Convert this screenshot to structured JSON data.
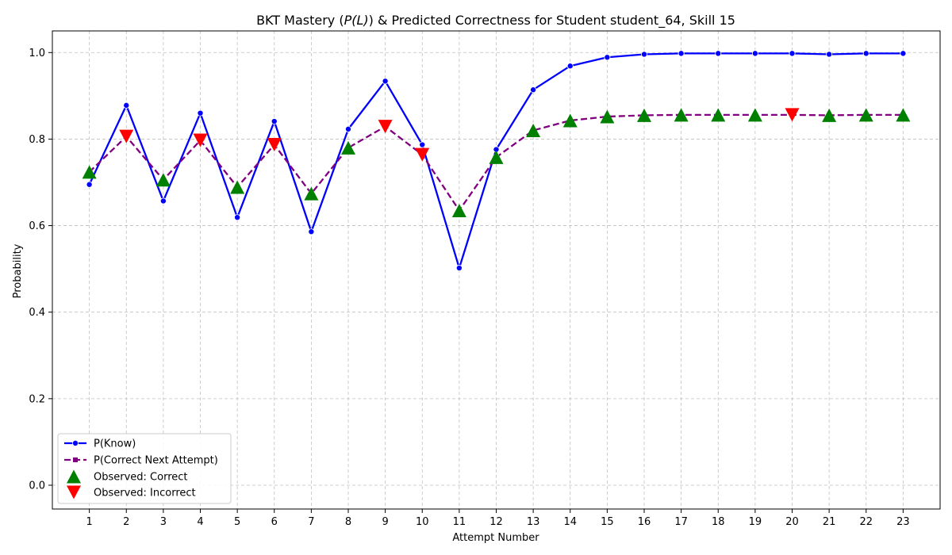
{
  "chart_data": {
    "type": "line",
    "title_prefix": "BKT Mastery (",
    "title_math": "P(L)",
    "title_suffix": ") & Predicted Correctness for Student student_64, Skill 15",
    "xlabel": "Attempt Number",
    "ylabel": "Probability",
    "x": [
      1,
      2,
      3,
      4,
      5,
      6,
      7,
      8,
      9,
      10,
      11,
      12,
      13,
      14,
      15,
      16,
      17,
      18,
      19,
      20,
      21,
      22,
      23
    ],
    "xlim": [
      0,
      24
    ],
    "ylim": [
      -0.055,
      1.05
    ],
    "yticks": [
      0.0,
      0.2,
      0.4,
      0.6,
      0.8,
      1.0
    ],
    "ytick_labels": [
      "0.0",
      "0.2",
      "0.4",
      "0.6",
      "0.8",
      "1.0"
    ],
    "xtick_labels": [
      "1",
      "2",
      "3",
      "4",
      "5",
      "6",
      "7",
      "8",
      "9",
      "10",
      "11",
      "12",
      "13",
      "14",
      "15",
      "16",
      "17",
      "18",
      "19",
      "20",
      "21",
      "22",
      "23"
    ],
    "grid": true,
    "legend_position": "lower-left",
    "series": [
      {
        "name": "P(Know)",
        "color": "#0000ff",
        "style": "solid",
        "marker": "circle",
        "values": [
          0.695,
          0.878,
          0.657,
          0.86,
          0.619,
          0.841,
          0.586,
          0.823,
          0.934,
          0.787,
          0.502,
          0.776,
          0.914,
          0.969,
          0.989,
          0.996,
          0.998,
          0.998,
          0.998,
          0.998,
          0.996,
          0.998,
          0.998
        ]
      },
      {
        "name": "P(Correct Next Attempt)",
        "color": "#800080",
        "style": "dashed",
        "marker": "square",
        "values": [
          0.724,
          0.806,
          0.706,
          0.797,
          0.689,
          0.787,
          0.674,
          0.78,
          0.829,
          0.764,
          0.635,
          0.758,
          0.82,
          0.843,
          0.852,
          0.855,
          0.856,
          0.856,
          0.856,
          0.856,
          0.855,
          0.856,
          0.856
        ]
      }
    ],
    "observations": [
      {
        "name": "Observed: Correct",
        "color": "#008000",
        "marker": "triangle-up",
        "correct": true
      },
      {
        "name": "Observed: Incorrect",
        "color": "#ff0000",
        "marker": "triangle-down",
        "correct": false
      }
    ],
    "observed_correct": [
      true,
      false,
      true,
      false,
      true,
      false,
      true,
      true,
      false,
      false,
      true,
      true,
      true,
      true,
      true,
      true,
      true,
      true,
      true,
      false,
      true,
      true,
      true
    ]
  }
}
